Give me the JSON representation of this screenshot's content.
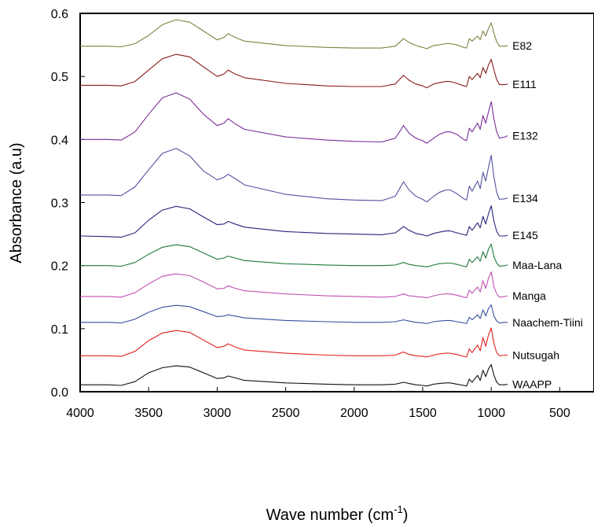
{
  "chart_data": {
    "type": "line",
    "xlabel_main": "Wave number (cm",
    "xlabel_sup": "-1",
    "xlabel_close": ")",
    "ylabel": "Absorbance (a.u)",
    "xlim": [
      4000,
      250
    ],
    "ylim": [
      0.0,
      0.6
    ],
    "x_reversed": true,
    "grid": false,
    "x_ticks": [
      4000,
      3500,
      3000,
      2500,
      2000,
      1500,
      1000,
      500
    ],
    "x_tick_labels": [
      "4000",
      "3500",
      "3000",
      "2500",
      "2000",
      "1500",
      "1000",
      "500"
    ],
    "y_ticks": [
      0.0,
      0.1,
      0.2,
      0.3,
      0.4,
      0.5,
      0.6
    ],
    "y_tick_labels": [
      "0.0",
      "0.1",
      "0.2",
      "0.3",
      "0.4",
      "0.5",
      "0.6"
    ],
    "series": [
      {
        "name": "E82",
        "color": "#808040",
        "x": [
          4000,
          3800,
          3700,
          3600,
          3500,
          3400,
          3300,
          3200,
          3100,
          3000,
          2950,
          2920,
          2870,
          2800,
          2500,
          2200,
          2000,
          1800,
          1700,
          1640,
          1600,
          1550,
          1500,
          1470,
          1420,
          1380,
          1330,
          1300,
          1250,
          1200,
          1180,
          1160,
          1140,
          1100,
          1080,
          1060,
          1040,
          1020,
          1000,
          980,
          960,
          940,
          900,
          880
        ],
        "y": [
          0.548,
          0.548,
          0.547,
          0.552,
          0.565,
          0.582,
          0.59,
          0.586,
          0.572,
          0.558,
          0.562,
          0.568,
          0.562,
          0.556,
          0.549,
          0.546,
          0.545,
          0.545,
          0.548,
          0.56,
          0.554,
          0.549,
          0.546,
          0.544,
          0.549,
          0.55,
          0.552,
          0.552,
          0.55,
          0.546,
          0.545,
          0.56,
          0.556,
          0.564,
          0.558,
          0.572,
          0.564,
          0.576,
          0.585,
          0.568,
          0.555,
          0.548,
          0.548,
          0.549
        ]
      },
      {
        "name": "E111",
        "color": "#8b1a1a",
        "x": [
          4000,
          3800,
          3700,
          3600,
          3500,
          3400,
          3300,
          3200,
          3100,
          3000,
          2950,
          2920,
          2870,
          2800,
          2500,
          2200,
          2000,
          1800,
          1700,
          1640,
          1600,
          1550,
          1500,
          1470,
          1420,
          1380,
          1330,
          1300,
          1250,
          1200,
          1180,
          1160,
          1140,
          1100,
          1080,
          1060,
          1040,
          1020,
          1000,
          980,
          960,
          940,
          900,
          880
        ],
        "y": [
          0.486,
          0.486,
          0.485,
          0.492,
          0.51,
          0.528,
          0.535,
          0.531,
          0.515,
          0.5,
          0.504,
          0.51,
          0.504,
          0.498,
          0.489,
          0.485,
          0.484,
          0.484,
          0.488,
          0.502,
          0.494,
          0.488,
          0.485,
          0.482,
          0.488,
          0.49,
          0.492,
          0.492,
          0.489,
          0.485,
          0.484,
          0.5,
          0.495,
          0.505,
          0.498,
          0.514,
          0.505,
          0.518,
          0.527,
          0.51,
          0.495,
          0.487,
          0.487,
          0.488
        ]
      },
      {
        "name": "E132",
        "color": "#7a2e9a",
        "x": [
          4000,
          3800,
          3700,
          3600,
          3500,
          3400,
          3300,
          3200,
          3100,
          3000,
          2950,
          2920,
          2870,
          2800,
          2500,
          2200,
          2000,
          1800,
          1700,
          1640,
          1600,
          1550,
          1500,
          1470,
          1420,
          1380,
          1330,
          1300,
          1250,
          1200,
          1180,
          1160,
          1140,
          1100,
          1080,
          1060,
          1040,
          1020,
          1000,
          980,
          960,
          940,
          900,
          880
        ],
        "y": [
          0.4,
          0.4,
          0.399,
          0.412,
          0.44,
          0.466,
          0.474,
          0.464,
          0.44,
          0.422,
          0.426,
          0.433,
          0.425,
          0.416,
          0.404,
          0.399,
          0.397,
          0.396,
          0.402,
          0.422,
          0.41,
          0.402,
          0.398,
          0.394,
          0.402,
          0.408,
          0.412,
          0.412,
          0.408,
          0.4,
          0.398,
          0.418,
          0.412,
          0.426,
          0.416,
          0.438,
          0.426,
          0.444,
          0.46,
          0.432,
          0.412,
          0.402,
          0.404,
          0.406
        ]
      },
      {
        "name": "E134",
        "color": "#5050a0",
        "x": [
          4000,
          3800,
          3700,
          3600,
          3500,
          3400,
          3300,
          3200,
          3100,
          3000,
          2950,
          2920,
          2870,
          2800,
          2500,
          2200,
          2000,
          1800,
          1700,
          1640,
          1600,
          1550,
          1500,
          1470,
          1420,
          1380,
          1330,
          1300,
          1250,
          1200,
          1180,
          1160,
          1140,
          1100,
          1080,
          1060,
          1040,
          1020,
          1000,
          980,
          960,
          940,
          900,
          880
        ],
        "y": [
          0.312,
          0.312,
          0.311,
          0.325,
          0.352,
          0.378,
          0.386,
          0.374,
          0.35,
          0.336,
          0.34,
          0.345,
          0.338,
          0.328,
          0.313,
          0.306,
          0.304,
          0.303,
          0.31,
          0.333,
          0.32,
          0.31,
          0.305,
          0.301,
          0.31,
          0.316,
          0.32,
          0.32,
          0.314,
          0.306,
          0.304,
          0.326,
          0.318,
          0.334,
          0.322,
          0.348,
          0.334,
          0.356,
          0.375,
          0.34,
          0.316,
          0.305,
          0.306,
          0.307
        ]
      },
      {
        "name": "E145",
        "color": "#23237a",
        "x": [
          4000,
          3800,
          3700,
          3600,
          3500,
          3400,
          3300,
          3200,
          3100,
          3000,
          2950,
          2920,
          2870,
          2800,
          2500,
          2200,
          2000,
          1800,
          1700,
          1640,
          1600,
          1550,
          1500,
          1470,
          1420,
          1380,
          1330,
          1300,
          1250,
          1200,
          1180,
          1160,
          1140,
          1100,
          1080,
          1060,
          1040,
          1020,
          1000,
          980,
          960,
          940,
          900,
          880
        ],
        "y": [
          0.247,
          0.246,
          0.245,
          0.252,
          0.272,
          0.288,
          0.294,
          0.29,
          0.277,
          0.265,
          0.266,
          0.27,
          0.266,
          0.261,
          0.254,
          0.251,
          0.25,
          0.249,
          0.252,
          0.262,
          0.256,
          0.251,
          0.249,
          0.247,
          0.251,
          0.253,
          0.255,
          0.255,
          0.252,
          0.249,
          0.248,
          0.262,
          0.256,
          0.268,
          0.26,
          0.278,
          0.266,
          0.282,
          0.295,
          0.27,
          0.254,
          0.247,
          0.247,
          0.248
        ]
      },
      {
        "name": "Maa-Lana",
        "color": "#1e7a3c",
        "x": [
          4000,
          3800,
          3700,
          3600,
          3500,
          3400,
          3300,
          3200,
          3100,
          3000,
          2950,
          2920,
          2870,
          2800,
          2500,
          2200,
          2000,
          1800,
          1700,
          1640,
          1600,
          1550,
          1500,
          1470,
          1420,
          1380,
          1330,
          1300,
          1250,
          1200,
          1180,
          1160,
          1140,
          1100,
          1080,
          1060,
          1040,
          1020,
          1000,
          980,
          960,
          940,
          900,
          880
        ],
        "y": [
          0.2,
          0.2,
          0.199,
          0.205,
          0.218,
          0.229,
          0.233,
          0.23,
          0.22,
          0.21,
          0.212,
          0.215,
          0.212,
          0.208,
          0.203,
          0.201,
          0.2,
          0.2,
          0.201,
          0.205,
          0.202,
          0.2,
          0.199,
          0.198,
          0.201,
          0.203,
          0.204,
          0.204,
          0.202,
          0.199,
          0.198,
          0.21,
          0.205,
          0.214,
          0.207,
          0.222,
          0.212,
          0.226,
          0.234,
          0.214,
          0.204,
          0.199,
          0.2,
          0.201
        ]
      },
      {
        "name": "Manga",
        "color": "#c050b0",
        "x": [
          4000,
          3800,
          3700,
          3600,
          3500,
          3400,
          3300,
          3200,
          3100,
          3000,
          2950,
          2920,
          2870,
          2800,
          2500,
          2200,
          2000,
          1800,
          1700,
          1640,
          1600,
          1550,
          1500,
          1470,
          1420,
          1380,
          1330,
          1300,
          1250,
          1200,
          1180,
          1160,
          1140,
          1100,
          1080,
          1060,
          1040,
          1020,
          1000,
          980,
          960,
          940,
          900,
          880
        ],
        "y": [
          0.151,
          0.151,
          0.15,
          0.157,
          0.171,
          0.183,
          0.187,
          0.184,
          0.174,
          0.163,
          0.164,
          0.168,
          0.164,
          0.16,
          0.155,
          0.152,
          0.151,
          0.15,
          0.151,
          0.155,
          0.152,
          0.151,
          0.15,
          0.149,
          0.152,
          0.154,
          0.155,
          0.155,
          0.153,
          0.15,
          0.149,
          0.161,
          0.156,
          0.166,
          0.158,
          0.176,
          0.164,
          0.18,
          0.19,
          0.166,
          0.155,
          0.15,
          0.151,
          0.152
        ]
      },
      {
        "name": "Naachem-Tiini",
        "color": "#3a50a0",
        "x": [
          4000,
          3800,
          3700,
          3600,
          3500,
          3400,
          3300,
          3200,
          3100,
          3000,
          2950,
          2920,
          2870,
          2800,
          2500,
          2200,
          2000,
          1800,
          1700,
          1640,
          1600,
          1550,
          1500,
          1470,
          1420,
          1380,
          1330,
          1300,
          1250,
          1200,
          1180,
          1160,
          1140,
          1100,
          1080,
          1060,
          1040,
          1020,
          1000,
          980,
          960,
          940,
          900,
          880
        ],
        "y": [
          0.11,
          0.11,
          0.109,
          0.115,
          0.126,
          0.134,
          0.137,
          0.135,
          0.127,
          0.119,
          0.12,
          0.122,
          0.12,
          0.117,
          0.113,
          0.111,
          0.11,
          0.11,
          0.111,
          0.114,
          0.112,
          0.11,
          0.109,
          0.108,
          0.111,
          0.112,
          0.113,
          0.113,
          0.111,
          0.109,
          0.108,
          0.118,
          0.114,
          0.122,
          0.116,
          0.13,
          0.12,
          0.132,
          0.138,
          0.12,
          0.112,
          0.109,
          0.11,
          0.11
        ]
      },
      {
        "name": "Nutsugah",
        "color": "#e02020",
        "x": [
          4000,
          3800,
          3700,
          3600,
          3500,
          3400,
          3300,
          3200,
          3100,
          3000,
          2950,
          2920,
          2870,
          2800,
          2500,
          2200,
          2000,
          1800,
          1700,
          1640,
          1600,
          1550,
          1500,
          1470,
          1420,
          1380,
          1330,
          1300,
          1250,
          1200,
          1180,
          1160,
          1140,
          1100,
          1080,
          1060,
          1040,
          1020,
          1000,
          980,
          960,
          940,
          900,
          880
        ],
        "y": [
          0.057,
          0.057,
          0.056,
          0.064,
          0.081,
          0.093,
          0.097,
          0.094,
          0.082,
          0.07,
          0.072,
          0.076,
          0.071,
          0.066,
          0.061,
          0.058,
          0.057,
          0.057,
          0.058,
          0.063,
          0.059,
          0.057,
          0.056,
          0.055,
          0.058,
          0.06,
          0.061,
          0.061,
          0.059,
          0.056,
          0.055,
          0.068,
          0.062,
          0.074,
          0.065,
          0.086,
          0.072,
          0.09,
          0.101,
          0.076,
          0.062,
          0.057,
          0.058,
          0.058
        ]
      },
      {
        "name": "WAAPP",
        "color": "#111111",
        "x": [
          4000,
          3800,
          3700,
          3600,
          3500,
          3400,
          3300,
          3200,
          3100,
          3000,
          2950,
          2920,
          2870,
          2800,
          2500,
          2200,
          2000,
          1800,
          1700,
          1640,
          1600,
          1550,
          1500,
          1470,
          1420,
          1380,
          1330,
          1300,
          1250,
          1200,
          1180,
          1160,
          1140,
          1100,
          1080,
          1060,
          1040,
          1020,
          1000,
          980,
          960,
          940,
          900,
          880
        ],
        "y": [
          0.011,
          0.011,
          0.01,
          0.016,
          0.03,
          0.038,
          0.041,
          0.039,
          0.03,
          0.021,
          0.022,
          0.025,
          0.022,
          0.018,
          0.014,
          0.012,
          0.011,
          0.011,
          0.012,
          0.015,
          0.013,
          0.011,
          0.01,
          0.009,
          0.012,
          0.013,
          0.014,
          0.014,
          0.012,
          0.01,
          0.009,
          0.02,
          0.015,
          0.026,
          0.018,
          0.034,
          0.024,
          0.036,
          0.043,
          0.026,
          0.015,
          0.011,
          0.011,
          0.012
        ]
      }
    ]
  }
}
